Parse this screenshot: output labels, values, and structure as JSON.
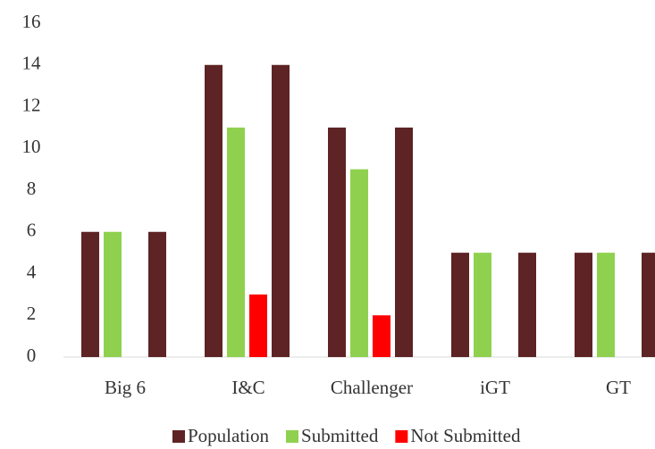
{
  "chart_data": {
    "type": "bar",
    "categories": [
      "Big 6",
      "I&C",
      "Challenger",
      "iGT",
      "GT"
    ],
    "series": [
      {
        "name": "Population",
        "color": "#5e2324",
        "values": [
          6,
          14,
          11,
          5,
          5
        ]
      },
      {
        "name": "Submitted",
        "color": "#8fd14f",
        "values": [
          6,
          11,
          9,
          5,
          5
        ]
      },
      {
        "name": "Not Submitted",
        "color": "#ff0000",
        "values": [
          0,
          3,
          2,
          0,
          0
        ]
      },
      {
        "color": "#5e2324",
        "values": [
          6,
          14,
          11,
          5,
          5
        ]
      }
    ],
    "ylim": [
      0,
      16
    ],
    "yticks": [
      0,
      2,
      4,
      6,
      8,
      10,
      12,
      14,
      16
    ],
    "grid": false
  }
}
